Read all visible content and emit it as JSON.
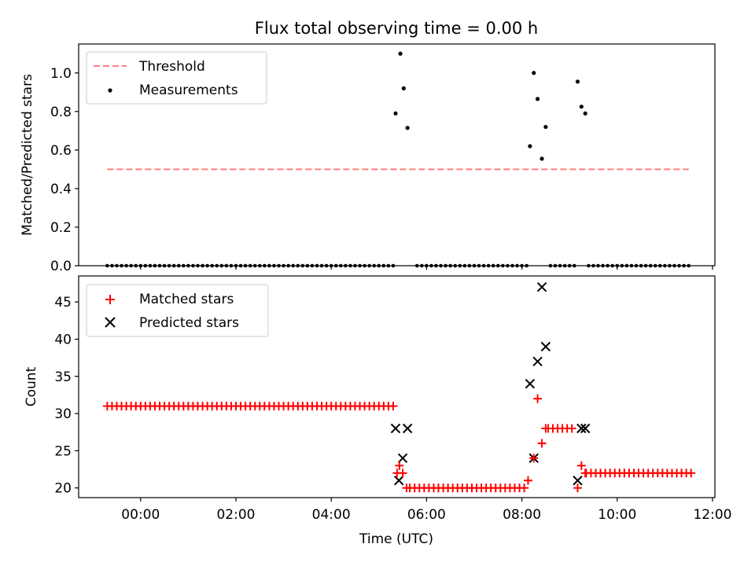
{
  "chart_data": [
    {
      "type": "scatter",
      "title": "Flux total observing time = 0.00 h",
      "xlabel": "",
      "ylabel": "Matched/Predicted stars",
      "xlim": [
        -1.3,
        12.05
      ],
      "ylim": [
        0.0,
        1.15
      ],
      "yticks": [
        0.0,
        0.2,
        0.4,
        0.6,
        0.8,
        1.0
      ],
      "ytick_labels": [
        "0.0",
        "0.2",
        "0.4",
        "0.6",
        "0.8",
        "1.0"
      ],
      "legend": {
        "placement": "top-left",
        "entries": [
          {
            "label": "Threshold",
            "kind": "dashed-line",
            "color": "#ff7f7f"
          },
          {
            "label": "Measurements",
            "kind": "dot",
            "color": "#000000"
          }
        ]
      },
      "threshold": {
        "name": "Threshold",
        "y": 0.5,
        "x": [
          -0.7,
          11.5
        ],
        "color": "#ff7f7f"
      },
      "zero_segments": [
        [
          -0.7,
          5.3
        ],
        [
          5.8,
          8.1
        ],
        [
          8.6,
          9.1
        ],
        [
          9.4,
          11.5
        ]
      ],
      "zero_step_h": 0.1,
      "measurements": {
        "name": "Measurements",
        "x": [
          5.35,
          5.45,
          5.52,
          5.6,
          8.17,
          8.25,
          8.33,
          8.42,
          8.5,
          9.17,
          9.25,
          9.33
        ],
        "y": [
          0.79,
          1.1,
          0.92,
          0.715,
          0.62,
          1.0,
          0.865,
          0.555,
          0.72,
          0.955,
          0.825,
          0.79
        ]
      }
    },
    {
      "type": "scatter",
      "xlabel": "Time (UTC)",
      "ylabel": "Count",
      "xlim": [
        -1.3,
        12.05
      ],
      "ylim": [
        18.7,
        48.5
      ],
      "yticks": [
        20,
        25,
        30,
        35,
        40,
        45
      ],
      "ytick_labels": [
        "20",
        "25",
        "30",
        "35",
        "40",
        "45"
      ],
      "xticks": [
        0,
        2,
        4,
        6,
        8,
        10,
        12
      ],
      "xtick_labels": [
        "00:00",
        "02:00",
        "04:00",
        "06:00",
        "08:00",
        "10:00",
        "12:00"
      ],
      "legend": {
        "placement": "top-left",
        "entries": [
          {
            "label": "Matched stars",
            "kind": "plus",
            "color": "#ff0000"
          },
          {
            "label": "Predicted stars",
            "kind": "x",
            "color": "#000000"
          }
        ]
      },
      "matched_runs": [
        {
          "x0": -0.7,
          "x1": 5.3,
          "y": 31
        },
        {
          "x0": 5.65,
          "x1": 8.05,
          "y": 20
        },
        {
          "x0": 8.55,
          "x1": 9.1,
          "y": 28
        },
        {
          "x0": 9.35,
          "x1": 11.5,
          "y": 22
        }
      ],
      "matched_run_step_h": 0.1,
      "matched_extra": {
        "name": "Matched stars",
        "x": [
          5.38,
          5.43,
          5.5,
          5.58,
          8.13,
          8.25,
          8.33,
          8.42,
          8.5,
          9.17,
          9.25,
          9.33
        ],
        "y": [
          22,
          23,
          22,
          20,
          21,
          24,
          32,
          26,
          28,
          20,
          23,
          22
        ]
      },
      "predicted": {
        "name": "Predicted stars",
        "x": [
          5.35,
          5.42,
          5.5,
          5.6,
          8.17,
          8.25,
          8.33,
          8.42,
          8.5,
          9.17,
          9.25,
          9.33
        ],
        "y": [
          28,
          21,
          24,
          28,
          34,
          24,
          37,
          47,
          39,
          21,
          28,
          28
        ]
      }
    }
  ]
}
